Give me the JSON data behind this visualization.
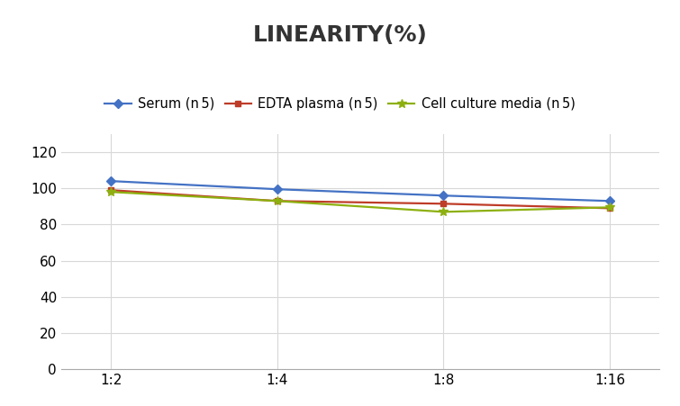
{
  "title": "LINEARITY(%)",
  "x_labels": [
    "1:2",
    "1:4",
    "1:8",
    "1:16"
  ],
  "x_positions": [
    0,
    1,
    2,
    3
  ],
  "series": [
    {
      "label": "Serum (n 5)",
      "values": [
        104,
        99.5,
        96,
        93
      ],
      "color": "#4472C4",
      "marker": "D",
      "markersize": 5,
      "linewidth": 1.6
    },
    {
      "label": "EDTA plasma (n 5)",
      "values": [
        99,
        93,
        91.5,
        89
      ],
      "color": "#BE3C28",
      "marker": "s",
      "markersize": 5,
      "linewidth": 1.6
    },
    {
      "label": "Cell culture media (n 5)",
      "values": [
        98,
        93,
        87,
        89.5
      ],
      "color": "#8DB010",
      "marker": "*",
      "markersize": 7,
      "linewidth": 1.6
    }
  ],
  "ylim": [
    0,
    130
  ],
  "yticks": [
    0,
    20,
    40,
    60,
    80,
    100,
    120
  ],
  "background_color": "#ffffff",
  "grid_color": "#d8d8d8",
  "title_fontsize": 18,
  "legend_fontsize": 10.5,
  "tick_fontsize": 11
}
